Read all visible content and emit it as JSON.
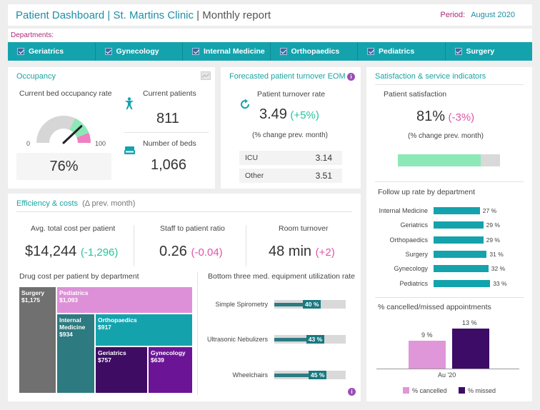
{
  "header": {
    "title_main": "Patient Dashboard | St. Martins Clinic",
    "title_sub": " | Monthly report",
    "period_label": "Period:",
    "period_value": "August 2020"
  },
  "departments": {
    "label": "Departments:",
    "items": [
      "Geriatrics",
      "Gynecology",
      "Internal Medicine",
      "Orthopaedics",
      "Pediatrics",
      "Surgery"
    ]
  },
  "occupancy": {
    "title": "Occupancy",
    "bed_rate_label": "Current bed occupancy rate",
    "gauge_min": "0",
    "gauge_max": "100",
    "gauge_value": 76,
    "rate_value": "76%",
    "patients_label": "Current patients",
    "patients_value": "811",
    "beds_label": "Number of beds",
    "beds_value": "1,066"
  },
  "forecast": {
    "title": "Forecasted patient turnover EOM",
    "turnover_label": "Patient turnover rate",
    "turnover_value": "3.49",
    "turnover_change": "(+5%)",
    "change_note": "(% change prev. month)",
    "rows": [
      {
        "name": "ICU",
        "value": "3.14"
      },
      {
        "name": "Other",
        "value": "3.51"
      }
    ]
  },
  "satisfaction": {
    "title": "Satisfaction & service indicators",
    "patient_sat_label": "Patient satisfaction",
    "patient_sat_value": "81%",
    "patient_sat_change": "(-3%)",
    "change_note": "(% change prev. month)",
    "sat_fraction": 0.81,
    "followup_title": "Follow up rate by department",
    "followup": [
      {
        "name": "Internal Medicine",
        "value": 27,
        "label": "27 %"
      },
      {
        "name": "Geriatrics",
        "value": 29,
        "label": "29 %"
      },
      {
        "name": "Orthopaedics",
        "value": 29,
        "label": "29 %"
      },
      {
        "name": "Surgery",
        "value": 31,
        "label": "31 %"
      },
      {
        "name": "Gynecology",
        "value": 32,
        "label": "32 %"
      },
      {
        "name": "Pediatrics",
        "value": 33,
        "label": "33 %"
      }
    ],
    "cancel_title": "% cancelled/missed appointments",
    "cancel_category": "Au '20",
    "cancelled": {
      "value": 9,
      "label": "9 %",
      "legend": "% cancelled"
    },
    "missed": {
      "value": 13,
      "label": "13 %",
      "legend": "% missed"
    },
    "colors": {
      "cancelled": "#df97d9",
      "missed": "#3d0c66"
    }
  },
  "efficiency": {
    "title": "Efficiency & costs",
    "title_note": "(Δ prev. month)",
    "kpis": [
      {
        "label": "Avg. total cost per patient",
        "value": "$14,244",
        "change": "(-1,296)"
      },
      {
        "label": "Staff to patient ratio",
        "value": "0.26",
        "change": "(-0.04)"
      },
      {
        "label": "Room turnover",
        "value": "48 min",
        "change": "(+2)"
      }
    ],
    "drug_title": "Drug cost per patient by department",
    "treemap": [
      {
        "name": "Surgery",
        "value": "$1,175",
        "color": "#707070"
      },
      {
        "name": "Pediatrics",
        "value": "$1,093",
        "color": "#dd90d8"
      },
      {
        "name": "Internal Medicine",
        "value": "$934",
        "color": "#2d7a80"
      },
      {
        "name": "Orthopaedics",
        "value": "$917",
        "color": "#14a3ad"
      },
      {
        "name": "Geriatrics",
        "value": "$757",
        "color": "#3e0d63"
      },
      {
        "name": "Gynecology",
        "value": "$639",
        "color": "#6b1496"
      }
    ],
    "equip_title": "Bottom three med. equipment utilization rate",
    "equipment": [
      {
        "name": "Simple Spirometry",
        "value": 40,
        "label": "40 %"
      },
      {
        "name": "Ultrasonic Nebulizers",
        "value": 43,
        "label": "43 %"
      },
      {
        "name": "Wheelchairs",
        "value": 45,
        "label": "45 %"
      }
    ]
  },
  "icons": {
    "person": "person-icon",
    "bed": "bed-icon",
    "refresh": "refresh-icon",
    "info": "info-icon",
    "image": "image-icon"
  }
}
